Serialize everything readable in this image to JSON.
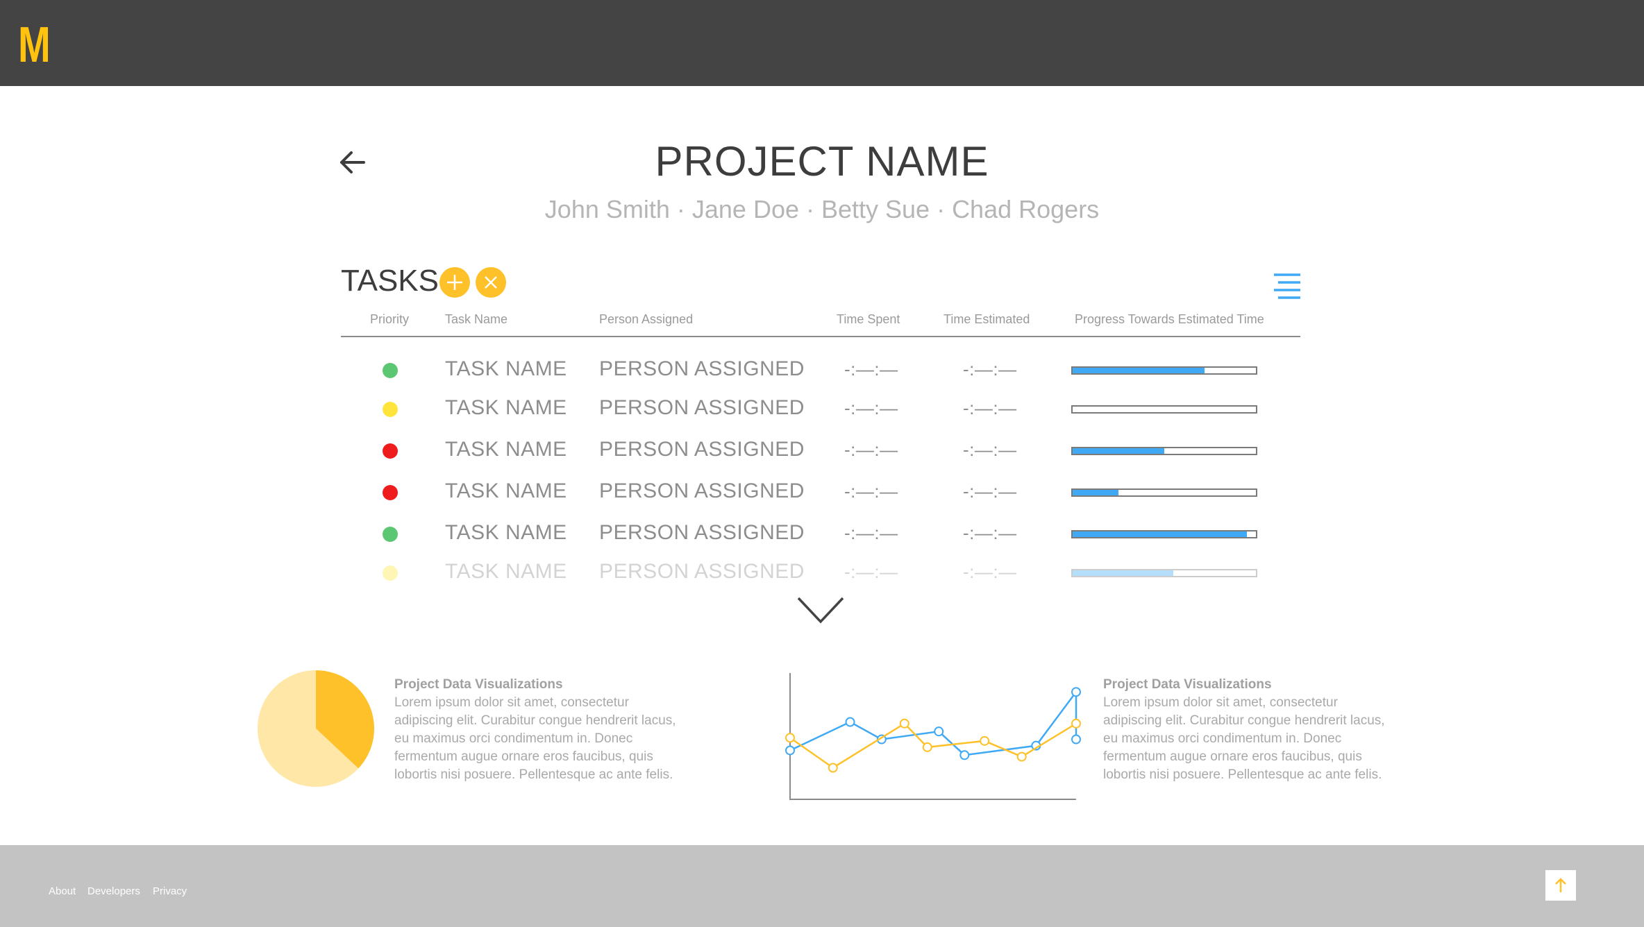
{
  "header": {
    "logo_text": "M"
  },
  "project": {
    "title": "PROJECT NAME",
    "members": "John Smith · Jane Doe · Betty Sue · Chad Rogers"
  },
  "tasks": {
    "title": "TASKS",
    "columns": {
      "priority": "Priority",
      "task_name": "Task Name",
      "person": "Person Assigned",
      "time_spent": "Time Spent",
      "time_estimated": "Time Estimated",
      "progress": "Progress Towards Estimated Time"
    },
    "rows": [
      {
        "priority_color": "#5CC772",
        "name": "TASK NAME",
        "person": "PERSON ASSIGNED",
        "time_spent": "-:—:—",
        "time_estimated": "-:—:—",
        "progress": 0.72,
        "faded": false
      },
      {
        "priority_color": "#FFE53B",
        "name": "TASK NAME",
        "person": "PERSON ASSIGNED",
        "time_spent": "-:—:—",
        "time_estimated": "-:—:—",
        "progress": 0.0,
        "faded": false
      },
      {
        "priority_color": "#EE1C1C",
        "name": "TASK NAME",
        "person": "PERSON ASSIGNED",
        "time_spent": "-:—:—",
        "time_estimated": "-:—:—",
        "progress": 0.5,
        "faded": false
      },
      {
        "priority_color": "#EE1C1C",
        "name": "TASK NAME",
        "person": "PERSON ASSIGNED",
        "time_spent": "-:—:—",
        "time_estimated": "-:—:—",
        "progress": 0.25,
        "faded": false
      },
      {
        "priority_color": "#5CC772",
        "name": "TASK NAME",
        "person": "PERSON ASSIGNED",
        "time_spent": "-:—:—",
        "time_estimated": "-:—:—",
        "progress": 0.95,
        "faded": false
      },
      {
        "priority_color": "#FFE53B",
        "name": "TASK NAME",
        "person": "PERSON ASSIGNED",
        "time_spent": "-:—:—",
        "time_estimated": "-:—:—",
        "progress": 0.55,
        "faded": true
      }
    ]
  },
  "visualizations": [
    {
      "title": "Project Data Visualizations",
      "body": "Lorem ipsum dolor sit amet, consectetur adipiscing elit. Curabitur congue hendrerit lacus, eu maximus orci condimentum in. Donec fermentum augue ornare eros faucibus, quis lobortis nisi posuere. Pellentesque ac ante felis."
    },
    {
      "title": "Project Data Visualizations",
      "body": "Lorem ipsum dolor sit amet, consectetur adipiscing elit. Curabitur congue hendrerit lacus, eu maximus orci condimentum in. Donec fermentum augue ornare eros faucibus, quis lobortis nisi posuere. Pellentesque ac ante felis."
    }
  ],
  "chart_data": [
    {
      "type": "pie",
      "slices": [
        {
          "value": 37,
          "color": "#FFC12A"
        },
        {
          "value": 63,
          "color": "#FFE7A8"
        }
      ]
    },
    {
      "type": "line",
      "x": [
        0,
        1,
        2,
        3,
        4,
        5,
        6,
        7,
        8,
        9,
        10
      ],
      "series": [
        {
          "color": "#3FA9F5",
          "values": [
            3.1,
            4.9,
            3.8,
            4.3,
            2.8,
            3.4,
            6.8,
            3.8
          ],
          "x": [
            0,
            2.1,
            3.2,
            5.2,
            6.1,
            8.6,
            10,
            10
          ]
        },
        {
          "color": "#FFC12A",
          "values": [
            3.9,
            2.0,
            4.8,
            3.3,
            3.7,
            2.7,
            4.8
          ],
          "x": [
            0,
            1.5,
            4.0,
            4.8,
            6.8,
            8.1,
            10
          ]
        }
      ],
      "ylim": [
        0,
        8
      ]
    }
  ],
  "footer": {
    "links": [
      "About",
      "Developers",
      "Privacy"
    ]
  },
  "icons": {
    "back": "arrow-left-icon",
    "add": "plus-icon",
    "remove": "x-icon",
    "menu": "hamburger-menu-icon",
    "more": "chevron-down-icon",
    "scroll_top": "arrow-up-icon"
  }
}
